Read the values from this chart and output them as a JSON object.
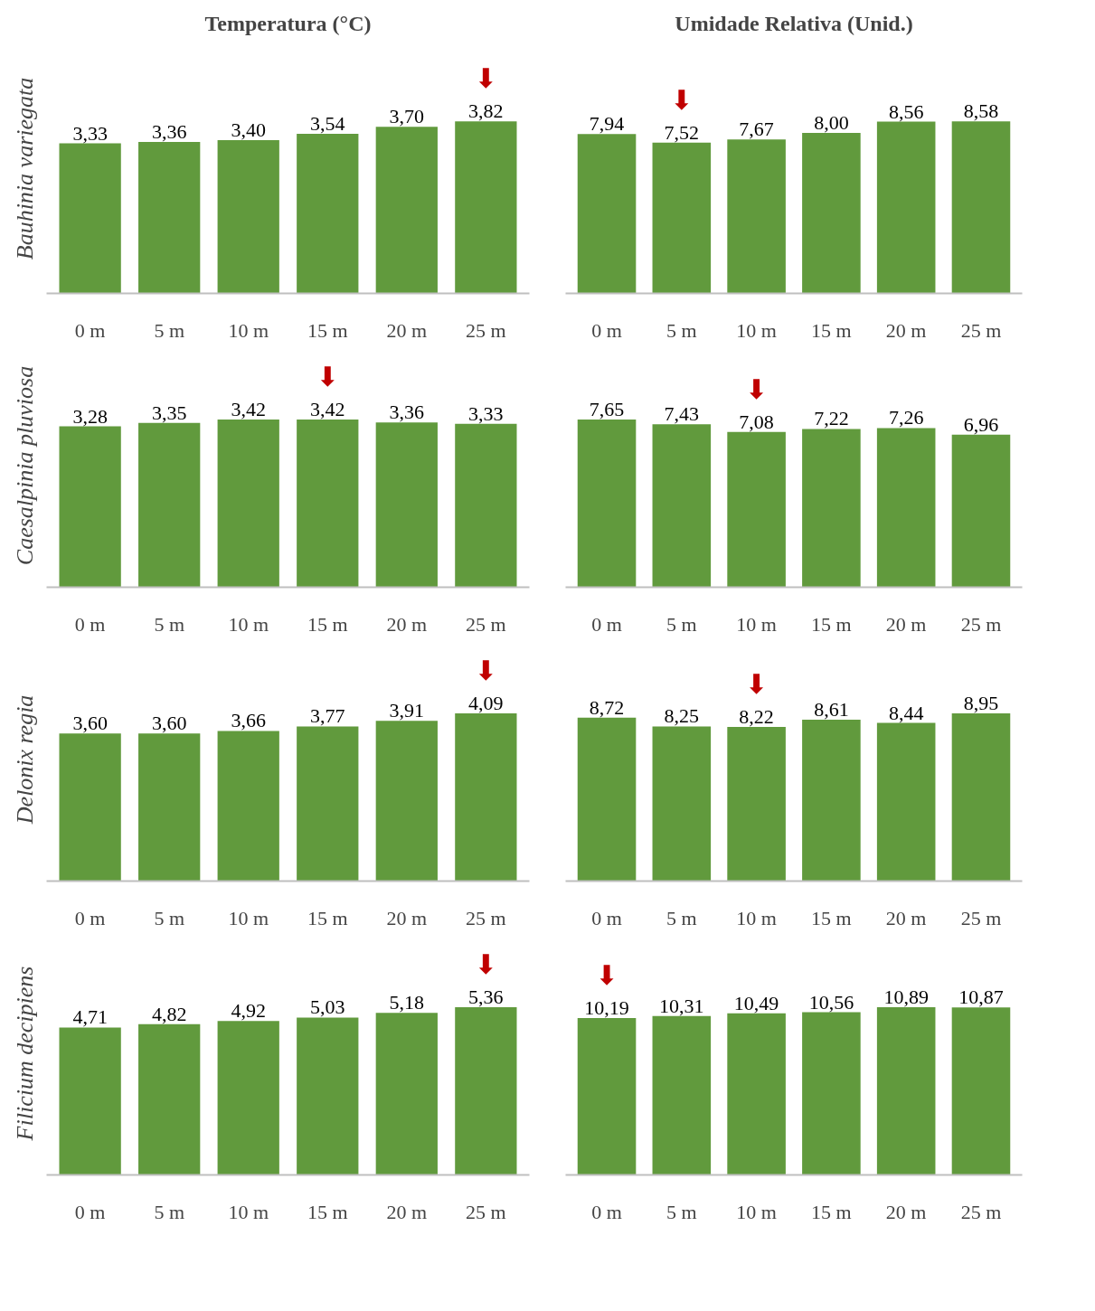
{
  "chart_data": [
    {
      "type": "bar",
      "title": "Temperatura (°C)",
      "ylabel": "Bauhinia variegata",
      "categories": [
        "0 m",
        "5 m",
        "10 m",
        "15 m",
        "20 m",
        "25 m"
      ],
      "values": [
        3.33,
        3.36,
        3.4,
        3.54,
        3.7,
        3.82
      ],
      "value_labels": [
        "3,33",
        "3,36",
        "3,40",
        "3,54",
        "3,70",
        "3,82"
      ],
      "color": "#619a3d",
      "annotations": [
        {
          "text": "⬇",
          "x": "25 m",
          "y": 3.82
        }
      ]
    },
    {
      "type": "bar",
      "title": "Umidade Relativa (Unid.)",
      "categories": [
        "0 m",
        "5 m",
        "10 m",
        "15 m",
        "20 m",
        "25 m"
      ],
      "values": [
        7.94,
        7.52,
        7.67,
        8.0,
        8.56,
        8.58
      ],
      "value_labels": [
        "7,94",
        "7,52",
        "7,67",
        "8,00",
        "8,56",
        "8,58"
      ],
      "color": "#619a3d",
      "annotations": [
        {
          "text": "⬇",
          "x": "5 m",
          "y": 7.52
        }
      ]
    },
    {
      "type": "bar",
      "ylabel": "Caesalpinia pluviosa",
      "categories": [
        "0 m",
        "5 m",
        "10 m",
        "15 m",
        "20 m",
        "25 m"
      ],
      "values": [
        3.28,
        3.35,
        3.42,
        3.42,
        3.36,
        3.33
      ],
      "value_labels": [
        "3,28",
        "3,35",
        "3,42",
        "3,42",
        "3,36",
        "3,33"
      ],
      "color": "#619a3d",
      "annotations": [
        {
          "text": "⬇",
          "x": "15 m",
          "y": 3.42
        }
      ]
    },
    {
      "type": "bar",
      "categories": [
        "0 m",
        "5 m",
        "10 m",
        "15 m",
        "20 m",
        "25 m"
      ],
      "values": [
        7.65,
        7.43,
        7.08,
        7.22,
        7.26,
        6.96
      ],
      "value_labels": [
        "7,65",
        "7,43",
        "7,08",
        "7,22",
        "7,26",
        "6,96"
      ],
      "color": "#619a3d",
      "annotations": [
        {
          "text": "⬇",
          "x": "10 m",
          "y": 7.08
        }
      ]
    },
    {
      "type": "bar",
      "ylabel": "Delonix regia",
      "categories": [
        "0 m",
        "5 m",
        "10 m",
        "15 m",
        "20 m",
        "25 m"
      ],
      "values": [
        3.6,
        3.6,
        3.66,
        3.77,
        3.91,
        4.09
      ],
      "value_labels": [
        "3,60",
        "3,60",
        "3,66",
        "3,77",
        "3,91",
        "4,09"
      ],
      "color": "#619a3d",
      "annotations": [
        {
          "text": "⬇",
          "x": "25 m",
          "y": 4.09
        }
      ]
    },
    {
      "type": "bar",
      "categories": [
        "0 m",
        "5 m",
        "10 m",
        "15 m",
        "20 m",
        "25 m"
      ],
      "values": [
        8.72,
        8.25,
        8.22,
        8.61,
        8.44,
        8.95
      ],
      "value_labels": [
        "8,72",
        "8,25",
        "8,22",
        "8,61",
        "8,44",
        "8,95"
      ],
      "color": "#619a3d",
      "annotations": [
        {
          "text": "⬇",
          "x": "10 m",
          "y": 8.22
        }
      ]
    },
    {
      "type": "bar",
      "ylabel": "Filicium decipiens",
      "categories": [
        "0 m",
        "5 m",
        "10 m",
        "15 m",
        "20 m",
        "25 m"
      ],
      "values": [
        4.71,
        4.82,
        4.92,
        5.03,
        5.18,
        5.36
      ],
      "value_labels": [
        "4,71",
        "4,82",
        "4,92",
        "5,03",
        "5,18",
        "5,36"
      ],
      "color": "#619a3d",
      "annotations": [
        {
          "text": "⬇",
          "x": "25 m",
          "y": 5.36
        }
      ]
    },
    {
      "type": "bar",
      "categories": [
        "0 m",
        "5 m",
        "10 m",
        "15 m",
        "20 m",
        "25 m"
      ],
      "values": [
        10.19,
        10.31,
        10.49,
        10.56,
        10.89,
        10.87
      ],
      "value_labels": [
        "10,19",
        "10,31",
        "10,49",
        "10,56",
        "10,89",
        "10,87"
      ],
      "color": "#619a3d",
      "annotations": [
        {
          "text": "⬇",
          "x": "0 m",
          "y": 10.19
        }
      ]
    }
  ]
}
